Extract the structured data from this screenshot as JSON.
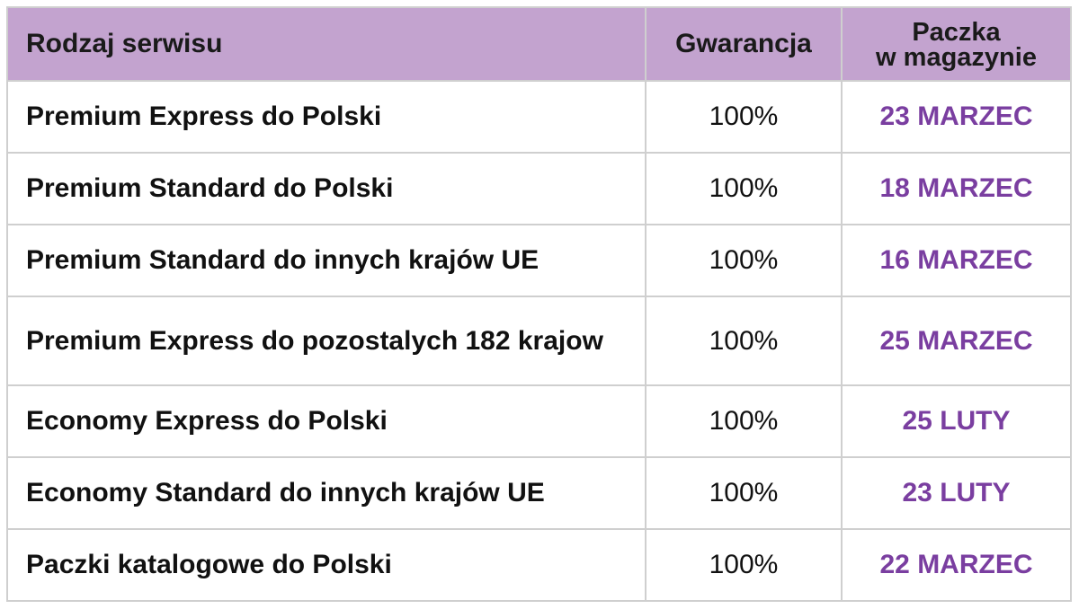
{
  "header": {
    "service": "Rodzaj serwisu",
    "guarantee": "Gwarancja",
    "warehouse_line1": "Paczka",
    "warehouse_line2": "w magazynie"
  },
  "rows": [
    {
      "service": "Premium Express do Polski",
      "guarantee": "100%",
      "date": "23 MARZEC"
    },
    {
      "service": "Premium Standard do Polski",
      "guarantee": "100%",
      "date": "18 MARZEC"
    },
    {
      "service": "Premium Standard do innych krajów UE",
      "guarantee": "100%",
      "date": "16 MARZEC"
    },
    {
      "service": "Premium Express do pozostalych 182 krajow",
      "guarantee": "100%",
      "date": "25 MARZEC"
    },
    {
      "service": "Economy Express do Polski",
      "guarantee": "100%",
      "date": "25 LUTY"
    },
    {
      "service": "Economy Standard do innych krajów UE",
      "guarantee": "100%",
      "date": "23 LUTY"
    },
    {
      "service": "Paczki katalogowe do Polski",
      "guarantee": "100%",
      "date": "22 MARZEC"
    }
  ],
  "colors": {
    "header_bg": "#c3a3cf",
    "date_text": "#7a3ea0",
    "grid": "#cfcfcf"
  }
}
